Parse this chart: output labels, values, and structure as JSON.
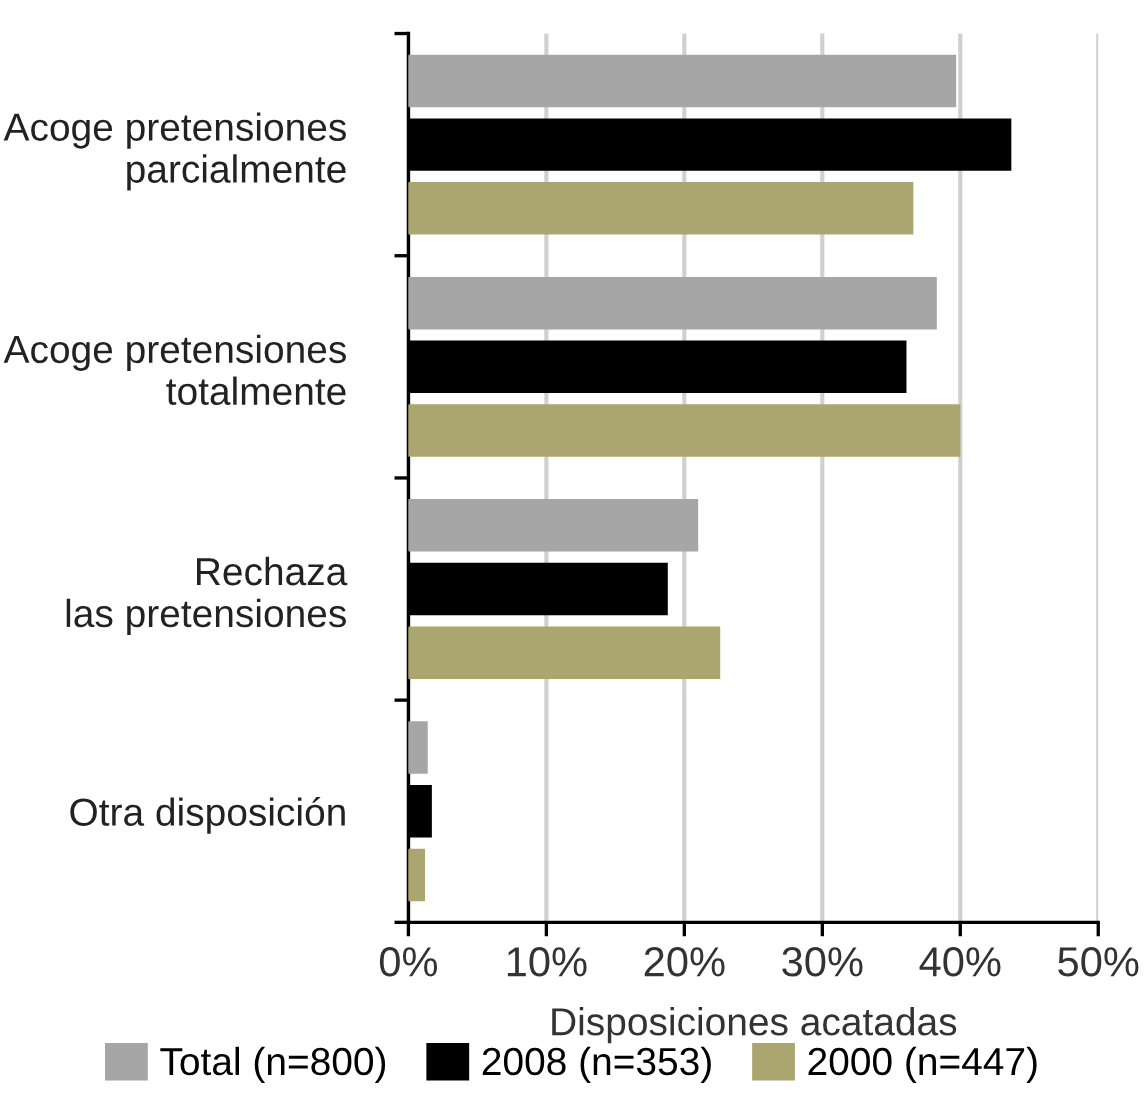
{
  "chart_data": {
    "type": "bar",
    "orientation": "horizontal",
    "xlabel": "Disposiciones acatadas",
    "categories": [
      "Acoge pretensiones\nparcialmente",
      "Acoge pretensiones\ntotalmente",
      "Rechaza\nlas pretensiones",
      "Otra disposición"
    ],
    "series": [
      {
        "name": "Total (n=800)",
        "color": "#a6a6a6",
        "values": [
          39.6,
          38.2,
          20.9,
          1.3
        ]
      },
      {
        "name": "2008 (n=353)",
        "color": "#000000",
        "values": [
          43.6,
          36.0,
          18.7,
          1.6
        ]
      },
      {
        "name": "2000 (n=447)",
        "color": "#aba66f",
        "values": [
          36.5,
          39.9,
          22.5,
          1.1
        ]
      }
    ],
    "xlim": [
      0,
      50
    ],
    "xticks": [
      {
        "value": 0,
        "label": "0%"
      },
      {
        "value": 10,
        "label": "10%"
      },
      {
        "value": 20,
        "label": "20%"
      },
      {
        "value": 30,
        "label": "30%"
      },
      {
        "value": 40,
        "label": "40%"
      },
      {
        "value": 50,
        "label": "50%"
      }
    ],
    "grid": "x",
    "legend": "bottom"
  }
}
